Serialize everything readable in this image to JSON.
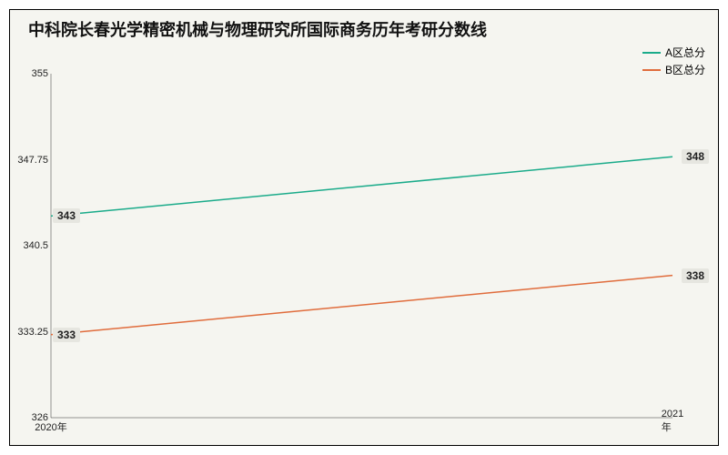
{
  "chart": {
    "type": "line",
    "title": "中科院长春光学精密机械与物理研究所国际商务历年考研分数线",
    "title_fontsize": 18,
    "background_color": "#f5f5f0",
    "border_color": "#000000",
    "grid": false,
    "axis_color": "#000000",
    "x": {
      "categories": [
        "2020年",
        "2021年"
      ],
      "label_fontsize": 11
    },
    "y": {
      "min": 326,
      "max": 355,
      "ticks": [
        326,
        333.25,
        340.5,
        347.75,
        355
      ],
      "tick_labels": [
        "326",
        "333.25",
        "340.5",
        "347.75",
        "355"
      ],
      "label_fontsize": 11
    },
    "legend": {
      "position": "top-right",
      "fontsize": 12,
      "items": [
        {
          "label": "A区总分",
          "color": "#1aab8a"
        },
        {
          "label": "B区总分",
          "color": "#e06c3c"
        }
      ]
    },
    "series": [
      {
        "name": "A区总分",
        "color": "#1aab8a",
        "line_width": 1.5,
        "values": [
          343,
          348
        ],
        "value_labels": [
          "343",
          "348"
        ]
      },
      {
        "name": "B区总分",
        "color": "#e06c3c",
        "line_width": 1.5,
        "values": [
          333,
          338
        ],
        "value_labels": [
          "333",
          "338"
        ]
      }
    ],
    "value_label_style": {
      "fontsize": 12,
      "font_weight": "bold",
      "background": "#e6e6e0"
    }
  }
}
